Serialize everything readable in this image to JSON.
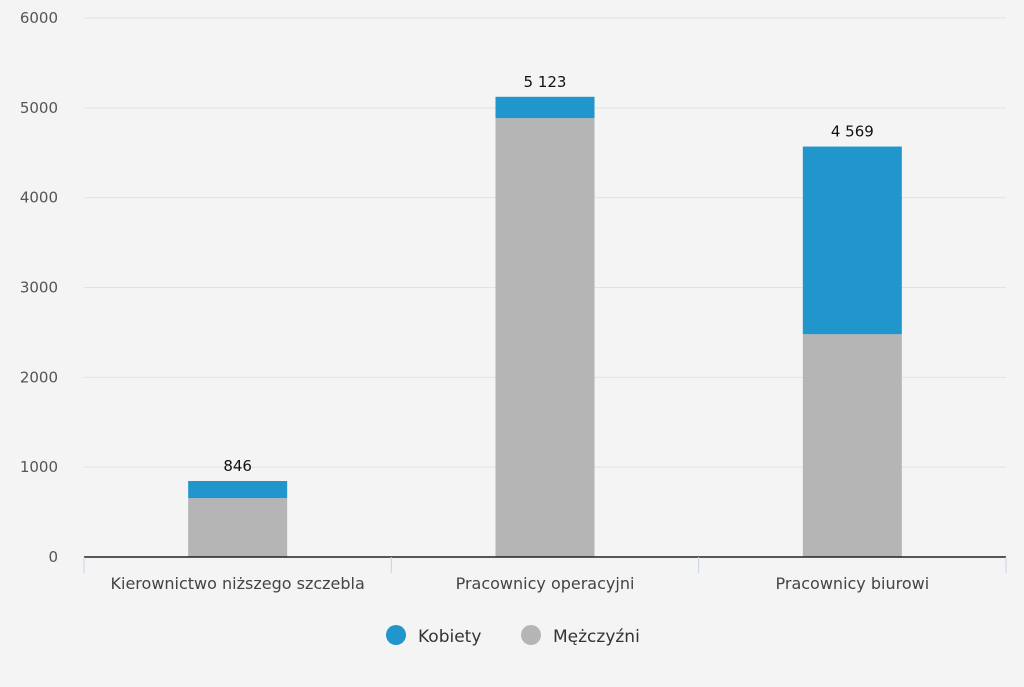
{
  "chart_data": {
    "type": "bar",
    "stacked": true,
    "categories": [
      "Kierownictwo niższego szczebla",
      "Pracownicy operacyjni",
      "Pracownicy biurowi"
    ],
    "series": [
      {
        "name": "Mężczyźni",
        "color": "#b5b5b5",
        "values": [
          655,
          4885,
          2480
        ]
      },
      {
        "name": "Kobiety",
        "color": "#2196cc",
        "values": [
          191,
          238,
          2089
        ]
      }
    ],
    "totals": [
      846,
      5123,
      4569
    ],
    "total_labels": [
      "846",
      "5 123",
      "4 569"
    ],
    "y_ticks": [
      0,
      1000,
      2000,
      3000,
      4000,
      5000,
      6000
    ],
    "y_tick_labels": [
      "0",
      "1000",
      "2000",
      "3000",
      "4000",
      "5000",
      "6000"
    ],
    "ylim": [
      0,
      6000
    ],
    "legend_order": [
      "Kobiety",
      "Mężczyźni"
    ],
    "legend_position": "bottom-center",
    "grid": true,
    "colors": {
      "background": "#f4f4f4",
      "grid": "#e2e2e2",
      "axis": "#222222"
    }
  }
}
